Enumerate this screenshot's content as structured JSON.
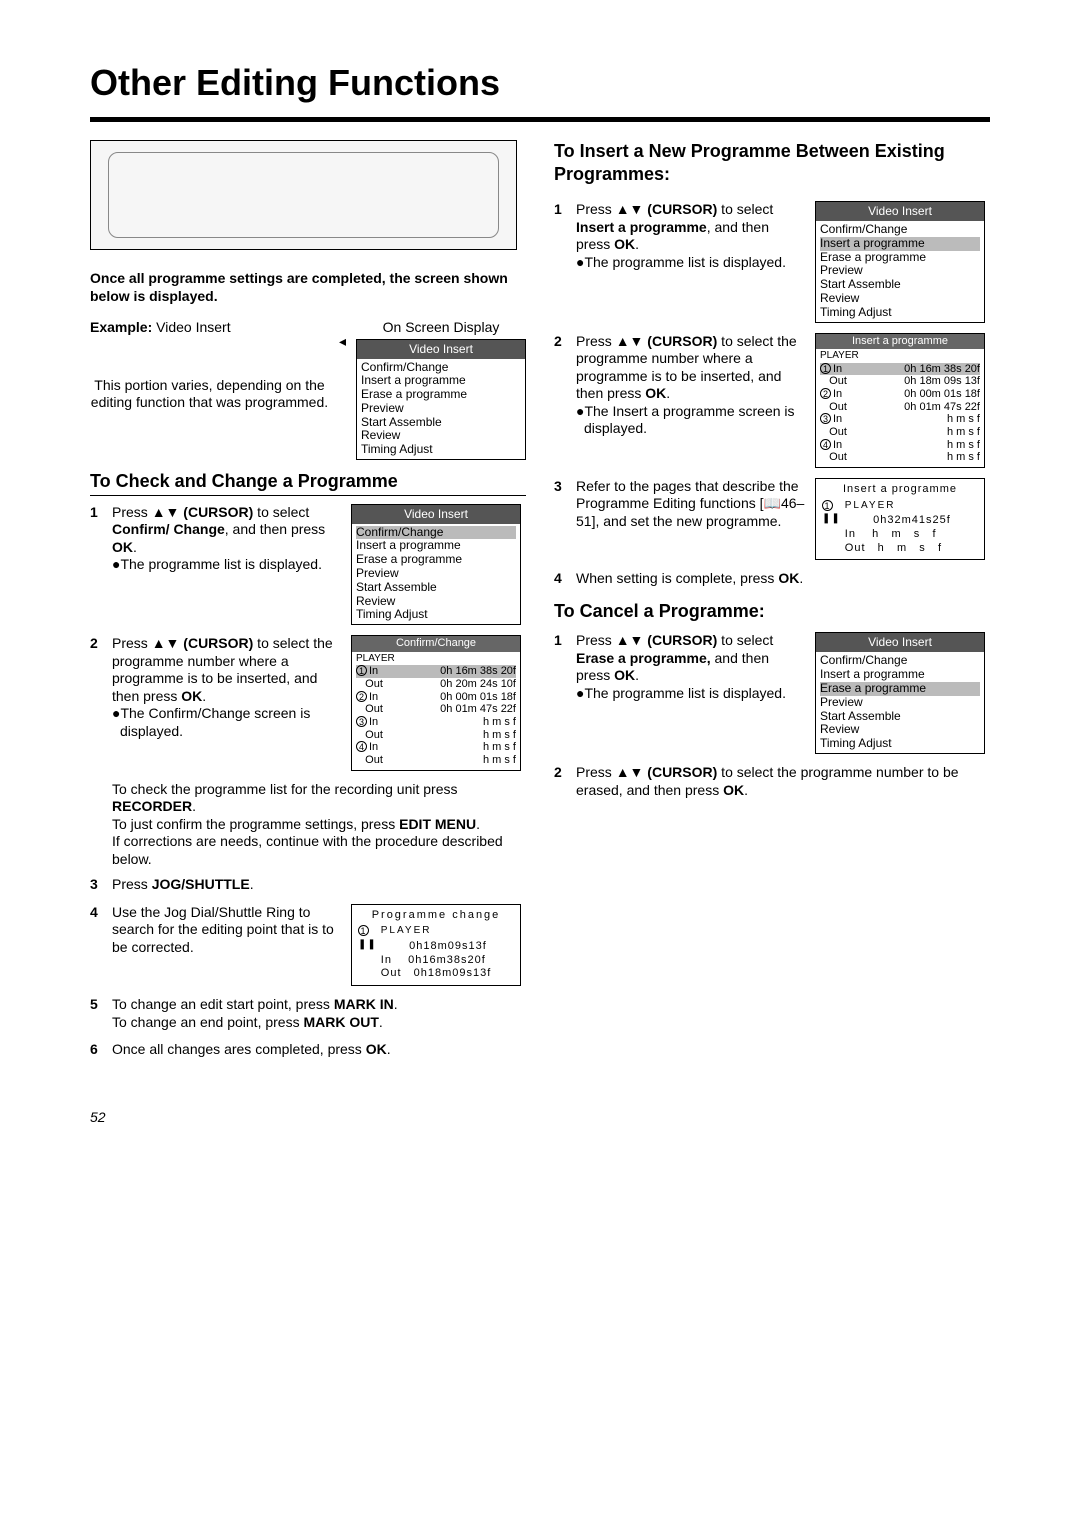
{
  "page_title": "Other Editing Functions",
  "page_number": "52",
  "intro_bold": "Once all programme settings are completed, the screen shown below is displayed.",
  "example_label": "Example:",
  "example_value": " Video Insert",
  "osd_caption": "On Screen Display",
  "portion_text": "This portion varies, depending on the editing function that was programmed.",
  "osd_video_insert": {
    "title": "Video Insert",
    "items": [
      "Confirm/Change",
      "Insert a programme",
      "Erase a programme",
      "Preview",
      "Start Assemble",
      "Review",
      "Timing Adjust"
    ]
  },
  "section1_heading": "To Check and Change a Programme",
  "s1_step1_a": "Press ",
  "s1_step1_cursor": "▲▼ (CURSOR)",
  "s1_step1_b": " to select ",
  "s1_step1_bold": "Confirm/ Change",
  "s1_step1_c": ", and then press ",
  "s1_step1_ok": "OK",
  "s1_step1_bullet": "●The programme list is displayed.",
  "osd_confirm_hl": {
    "title": "Video Insert",
    "highlight": "Confirm/Change",
    "items": [
      "Insert a programme",
      "Erase a programme",
      "Preview",
      "Start Assemble",
      "Review",
      "Timing Adjust"
    ]
  },
  "s1_step2_a": "Press ",
  "s1_step2_cursor": "▲▼ (CURSOR)",
  "s1_step2_b": " to select the programme number where a programme is to be inserted, and then press ",
  "s1_step2_ok": "OK",
  "s1_step2_bullet": "●The Confirm/Change screen is displayed.",
  "confirm_table": {
    "title": "Confirm/Change",
    "player": "PLAYER",
    "rows": [
      {
        "n": "1",
        "lbl": "In",
        "val": "0h 16m 38s 20f",
        "hl": true
      },
      {
        "n": "",
        "lbl": "Out",
        "val": "0h 20m 24s 10f"
      },
      {
        "n": "2",
        "lbl": "In",
        "val": "0h 00m 01s 18f"
      },
      {
        "n": "",
        "lbl": "Out",
        "val": "0h 01m 47s 22f"
      },
      {
        "n": "3",
        "lbl": "In",
        "val": "h   m   s   f"
      },
      {
        "n": "",
        "lbl": "Out",
        "val": "h   m   s   f"
      },
      {
        "n": "4",
        "lbl": "In",
        "val": "h   m   s   f"
      },
      {
        "n": "",
        "lbl": "Out",
        "val": "h   m   s   f"
      }
    ]
  },
  "s1_note1": "To check the programme list for the recording unit press ",
  "s1_note1_bold": "RECORDER",
  "s1_note2": "To just confirm the programme settings, press ",
  "s1_note2_bold": "EDIT MENU",
  "s1_note3": "If corrections are needs, continue with the procedure described below.",
  "s1_step3": "Press ",
  "s1_step3_bold": "JOG/SHUTTLE",
  "s1_step4": "Use the Jog Dial/Shuttle Ring to search for the editing point that is to be corrected.",
  "prog_change": {
    "title": "Programme change",
    "player": "PLAYER",
    "lines": [
      "       0h18m09s13f",
      "In    0h16m38s20f",
      "Out   0h18m09s13f"
    ]
  },
  "s1_step5a": "To change an edit start point, press ",
  "s1_step5a_bold": "MARK IN",
  "s1_step5b": "To change an end point, press ",
  "s1_step5b_bold": "MARK OUT",
  "s1_step6": "Once all changes ares completed, press ",
  "s1_step6_bold": "OK",
  "section2_heading": "To Insert a New Programme Between Existing Programmes:",
  "s2_step1_a": "Press ",
  "s2_step1_cursor": "▲▼ (CURSOR)",
  "s2_step1_b": " to select ",
  "s2_step1_bold": "Insert a programme",
  "s2_step1_c": ", and then press ",
  "s2_step1_ok": "OK",
  "s2_step1_bullet": "●The programme list is displayed.",
  "osd_insert_hl": {
    "title": "Video Insert",
    "items_before": [
      "Confirm/Change"
    ],
    "highlight": "Insert a programme",
    "items_after": [
      "Erase a programme",
      "Preview",
      "Start Assemble",
      "Review",
      "Timing Adjust"
    ]
  },
  "s2_step2_a": "Press ",
  "s2_step2_cursor": "▲▼ (CURSOR)",
  "s2_step2_b": " to select the programme number where a programme is to be inserted, and then press ",
  "s2_step2_ok": "OK",
  "s2_step2_bullet": "●The Insert a programme screen is displayed.",
  "insert_table": {
    "title": "Insert a programme",
    "player": "PLAYER",
    "rows": [
      {
        "n": "1",
        "lbl": "In",
        "val": "0h 16m 38s 20f",
        "hl": true
      },
      {
        "n": "",
        "lbl": "Out",
        "val": "0h 18m 09s 13f"
      },
      {
        "n": "2",
        "lbl": "In",
        "val": "0h 00m 01s 18f"
      },
      {
        "n": "",
        "lbl": "Out",
        "val": "0h 01m 47s 22f"
      },
      {
        "n": "3",
        "lbl": "In",
        "val": "h   m   s   f"
      },
      {
        "n": "",
        "lbl": "Out",
        "val": "h   m   s   f"
      },
      {
        "n": "4",
        "lbl": "In",
        "val": "h   m   s   f"
      },
      {
        "n": "",
        "lbl": "Out",
        "val": "h   m   s   f"
      }
    ]
  },
  "s2_step3": "Refer to the pages that describe the Programme Editing functions [📖46–51], and set the new programme.",
  "insert_prog_box": {
    "title": "Insert a programme",
    "player": "PLAYER",
    "lines": [
      "       0h32m41s25f",
      "In    h   m   s   f",
      "Out   h   m   s   f"
    ]
  },
  "s2_step4": "When setting is complete, press ",
  "s2_step4_bold": "OK",
  "section3_heading": "To Cancel a Programme:",
  "s3_step1_a": "Press ",
  "s3_step1_cursor": "▲▼ (CURSOR)",
  "s3_step1_b": " to select ",
  "s3_step1_bold": "Erase a programme,",
  "s3_step1_c": " and then press ",
  "s3_step1_ok": "OK",
  "s3_step1_bullet": "●The programme list is displayed.",
  "osd_erase_hl": {
    "title": "Video Insert",
    "items_before": [
      "Confirm/Change",
      "Insert a programme"
    ],
    "highlight": "Erase a programme",
    "items_after": [
      "Preview",
      "Start Assemble",
      "Review",
      "Timing Adjust"
    ]
  },
  "s3_step2_a": "Press ",
  "s3_step2_cursor": "▲▼ (CURSOR)",
  "s3_step2_b": " to select the programme number to be erased, and then press ",
  "s3_step2_ok": "OK"
}
